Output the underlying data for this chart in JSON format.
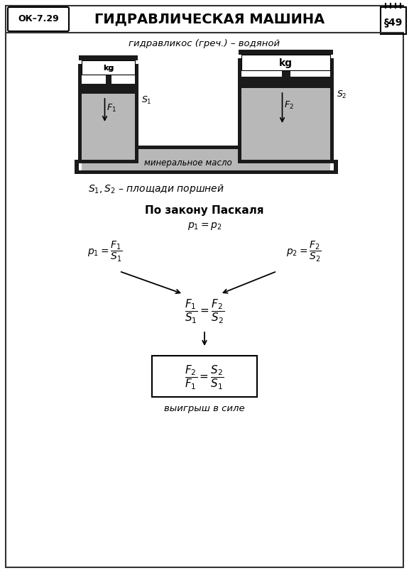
{
  "title": "ГИДРАВЛИЧЕСКАЯ МАШИНА",
  "ok_label": "ОК–7.29",
  "section": "§49",
  "subtitle": "гидравликос (греч.) – водяной",
  "caption1": "$S_1, S_2$ – площади поршней",
  "pascal_law": "По закону Паскаля",
  "pascal_eq": "$p_1 = p_2$",
  "mineral_oil": "минеральное масло",
  "gain_label": "выигрыш в силе",
  "fluid_color": "#b8b8b8",
  "piston_color": "#1a1a1a",
  "dark_color": "#1a1a1a"
}
